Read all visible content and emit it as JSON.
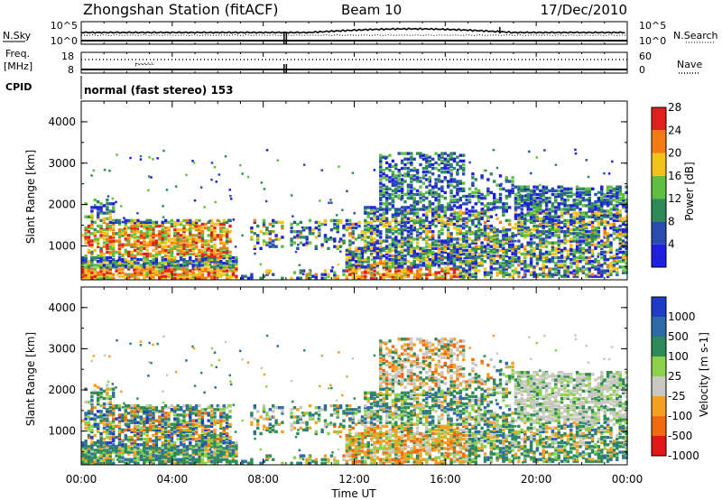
{
  "header": {
    "station": "Zhongshan Station (fitACF)",
    "beam": "Beam 10",
    "date": "17/Dec/2010"
  },
  "status_panel_1": {
    "left_label": "N.Sky",
    "right_label": "N.Search",
    "left_ticks": [
      "10^5",
      "10^0"
    ],
    "right_ticks": [
      "10^5",
      "10^0"
    ]
  },
  "status_panel_2": {
    "left_label_1": "Freq.",
    "left_label_2": "[MHz]",
    "right_label": "Nave",
    "left_ticks": [
      "18",
      "8"
    ],
    "right_ticks": [
      "60",
      "0"
    ]
  },
  "cpid": {
    "label": "CPID",
    "text": "normal (fast stereo) 153"
  },
  "chart_data": [
    {
      "type": "heatmap",
      "quantity": "Power",
      "ylabel": "Slant Range [km]",
      "ylim": [
        180,
        4500
      ],
      "yticks": [
        1000,
        2000,
        3000,
        4000
      ],
      "xlim": [
        0,
        24
      ],
      "colorbar_label": "Power [dB]",
      "colorbar_ticks": [
        "4",
        "8",
        "12",
        "16",
        "20",
        "24",
        "28"
      ],
      "colors": [
        "#1f1fe0",
        "#2a4bb0",
        "#2e8b57",
        "#5fbf40",
        "#f2c41a",
        "#f47a12",
        "#e0201c"
      ]
    },
    {
      "type": "heatmap",
      "quantity": "Velocity",
      "ylabel": "Slant Range [km]",
      "ylim": [
        180,
        4500
      ],
      "yticks": [
        1000,
        2000,
        3000,
        4000
      ],
      "xlim": [
        0,
        24
      ],
      "colorbar_label": "Velocity [m s-1]",
      "colorbar_ticks": [
        "1000",
        "500",
        "100",
        "25",
        "-25",
        "-100",
        "-500",
        "-1000"
      ],
      "colors": [
        "#1f3cc8",
        "#2e6aa8",
        "#2e8b57",
        "#8bd24a",
        "#c8c8c0",
        "#f5a020",
        "#f06a10",
        "#e01818"
      ]
    }
  ],
  "time_axis": {
    "label": "Time UT",
    "ticks": [
      "00:00",
      "04:00",
      "08:00",
      "12:00",
      "16:00",
      "20:00",
      "00:00"
    ]
  }
}
